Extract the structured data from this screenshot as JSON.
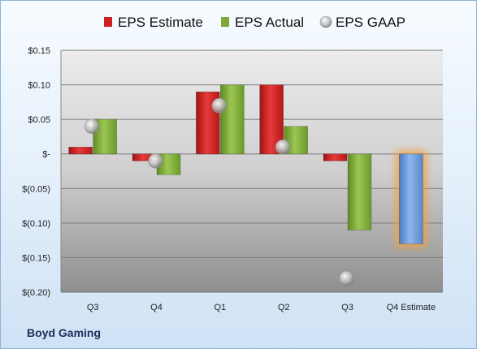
{
  "company": "Boyd Gaming",
  "chart_data": {
    "type": "bar",
    "categories": [
      "Q3",
      "Q4",
      "Q1",
      "Q2",
      "Q3",
      "Q4 Estimate"
    ],
    "series": [
      {
        "name": "EPS Estimate",
        "type": "bar",
        "color": "#cc1f1f",
        "values": [
          0.01,
          -0.01,
          0.09,
          0.1,
          -0.01,
          null
        ]
      },
      {
        "name": "EPS Actual",
        "type": "bar",
        "color": "#7fa83a",
        "values": [
          0.05,
          -0.03,
          0.1,
          0.04,
          -0.11,
          null
        ]
      },
      {
        "name": "EPS GAAP",
        "type": "marker",
        "color": "#b9b9b9",
        "values": [
          0.04,
          -0.01,
          0.07,
          0.01,
          -0.18,
          null
        ]
      }
    ],
    "forecast": {
      "category": "Q4 Estimate",
      "value": -0.13,
      "color": "#6a9ad8",
      "glow": "#f5a040"
    },
    "ylim": [
      -0.2,
      0.15
    ],
    "yticks": [
      0.15,
      0.1,
      0.05,
      0,
      -0.05,
      -0.1,
      -0.15,
      -0.2
    ],
    "ytick_labels": [
      "$0.15",
      "$0.10",
      "$0.05",
      "$-",
      "$(0.05)",
      "$(0.10)",
      "$(0.15)",
      "$(0.20)"
    ],
    "legend_position": "top",
    "grid": true
  }
}
